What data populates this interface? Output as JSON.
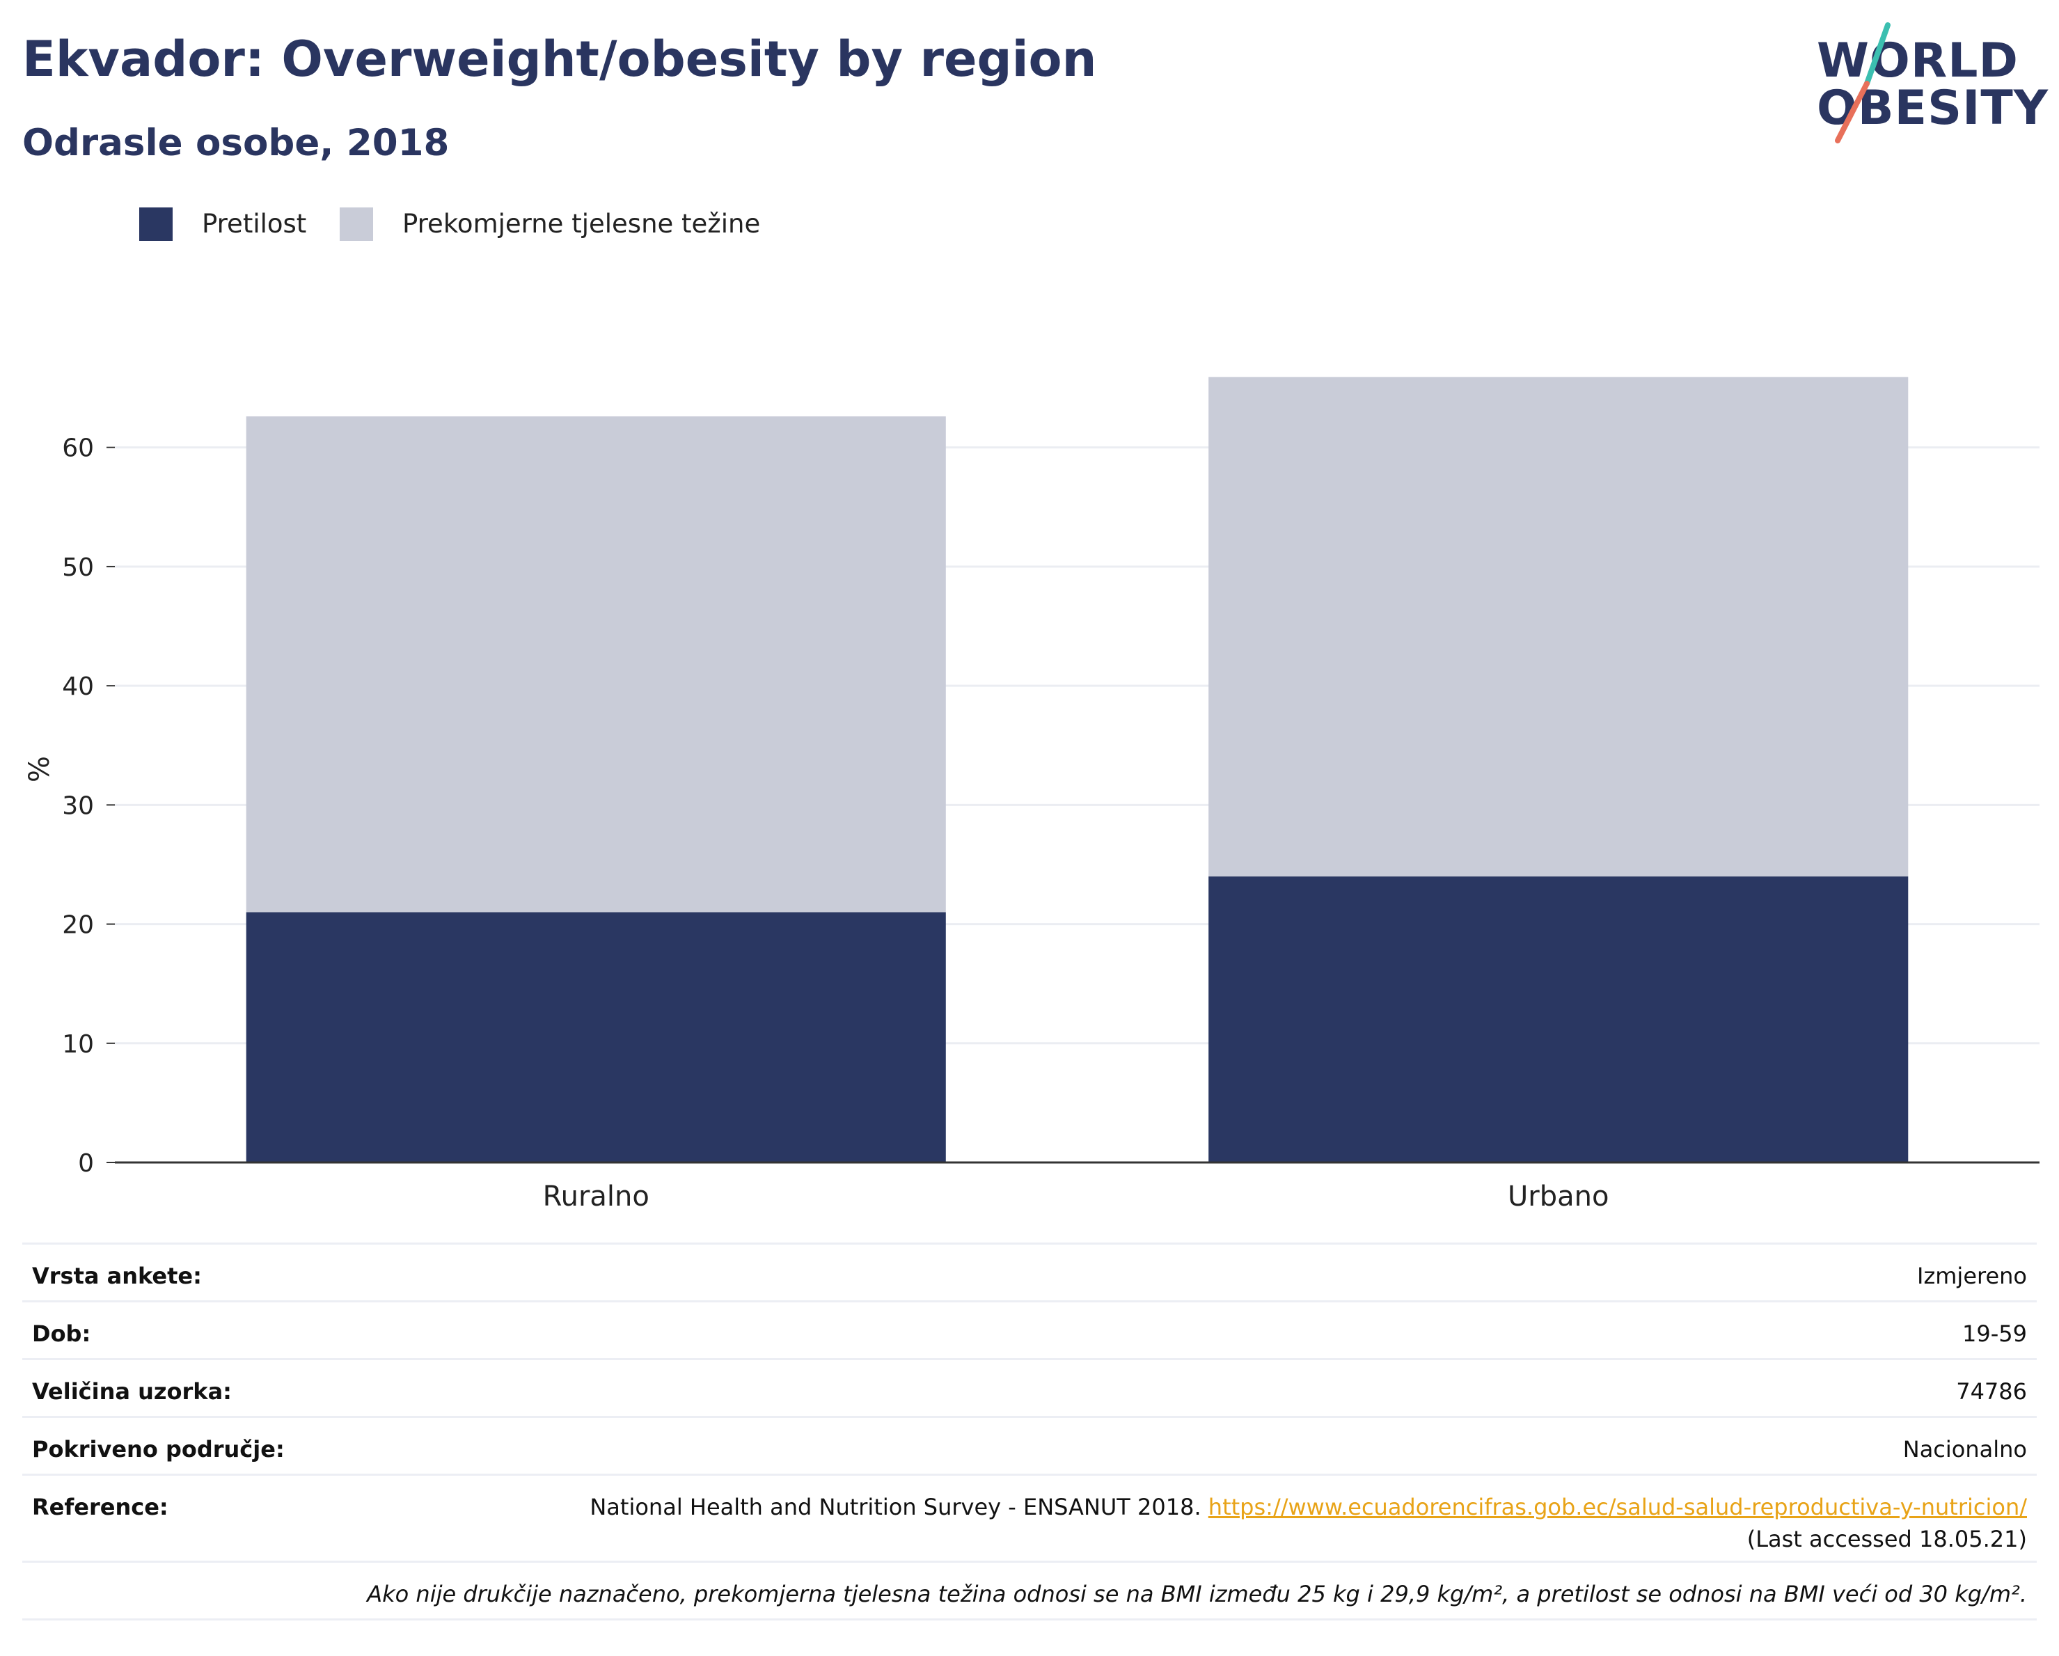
{
  "header": {
    "title": "Ekvador: Overweight/obesity by region",
    "subtitle": "Odrasle osobe, 2018"
  },
  "logo": {
    "line1": "WORLD",
    "line2": "OBESITY",
    "accent_colors": [
      "#3bbfb0",
      "#e8705a"
    ]
  },
  "legend": [
    {
      "label": "Pretilost",
      "color": "#2a3762"
    },
    {
      "label": "Prekomjerne tjelesne težine",
      "color": "#c9ccd8"
    }
  ],
  "chart_data": {
    "type": "bar",
    "stacked": true,
    "categories": [
      "Ruralno",
      "Urbano"
    ],
    "series": [
      {
        "name": "Pretilost",
        "color": "#2a3762",
        "values": [
          21.0,
          24.0
        ]
      },
      {
        "name": "Prekomjerne tjelesne težine",
        "color": "#c9ccd8",
        "values": [
          41.6,
          41.9
        ]
      }
    ],
    "ylabel": "%",
    "xlabel": "",
    "ylim": [
      0,
      66
    ],
    "yticks": [
      0,
      10,
      20,
      30,
      40,
      50,
      60
    ],
    "grid": true,
    "legend_position": "top-left"
  },
  "info": {
    "rows": [
      {
        "key": "Vrsta ankete:",
        "value": "Izmjereno"
      },
      {
        "key": "Dob:",
        "value": "19-59"
      },
      {
        "key": "Veličina uzorka:",
        "value": "74786"
      },
      {
        "key": "Pokriveno područje:",
        "value": "Nacionalno"
      }
    ],
    "reference": {
      "key": "Reference:",
      "text": "National Health and Nutrition Survey - ENSANUT 2018.",
      "link": "https://www.ecuadorencifras.gob.ec/salud-salud-reproductiva-y-nutricion/",
      "accessed": "(Last accessed 18.05.21)"
    },
    "note": "Ako nije drukčije naznačeno, prekomjerna tjelesna težina odnosi se na BMI između 25 kg i 29,9 kg/m², a pretilost se odnosi na BMI veći od 30 kg/m²."
  }
}
